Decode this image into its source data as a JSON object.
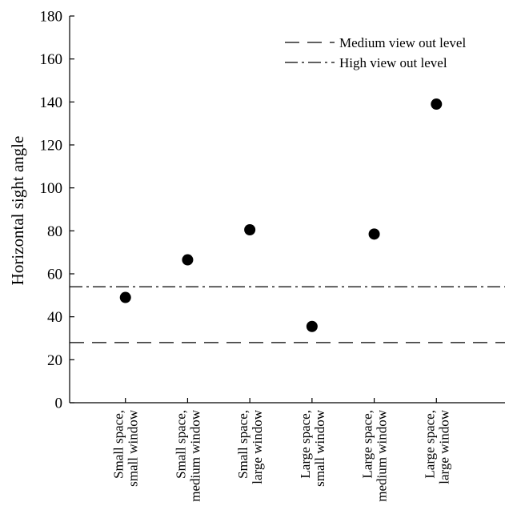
{
  "chart_data": {
    "type": "scatter",
    "ylabel": "Horizontal sight angle",
    "ylim": [
      0,
      180
    ],
    "yticks": [
      0,
      20,
      40,
      60,
      80,
      100,
      120,
      140,
      160,
      180
    ],
    "categories": [
      [
        "Small space,",
        "small window"
      ],
      [
        "Small space,",
        "medium window"
      ],
      [
        "Small space,",
        "large window"
      ],
      [
        "Large space,",
        "small window"
      ],
      [
        "Large space,",
        "medium window"
      ],
      [
        "Large space,",
        "large window"
      ]
    ],
    "values": [
      49,
      66.5,
      80.5,
      35.5,
      78.5,
      139
    ],
    "reference_lines": [
      {
        "name": "Medium view out level",
        "value": 28,
        "style": "dashed"
      },
      {
        "name": "High view out level",
        "value": 54,
        "style": "dashdot"
      }
    ],
    "legend_position": "top-right",
    "grid": false,
    "marker_color": "#000000"
  }
}
